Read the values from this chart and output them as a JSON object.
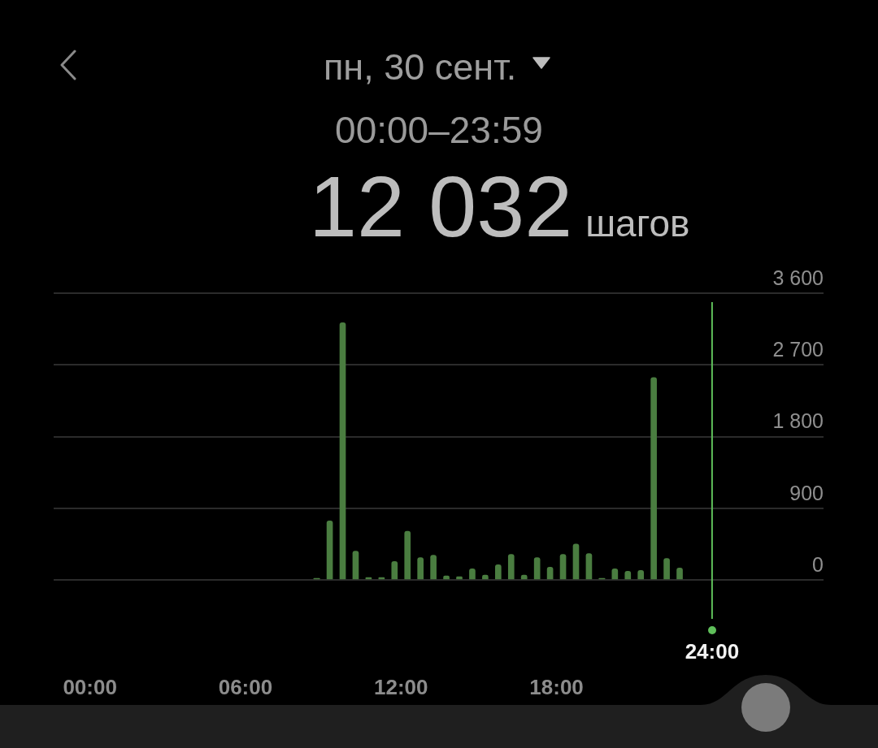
{
  "chart_data": {
    "type": "bar",
    "title": "пн, 30 сент.",
    "subtitle": "00:00–23:59",
    "annotations": [
      "12 032",
      "шагов"
    ],
    "x": [
      8.75,
      9.25,
      9.75,
      10.25,
      10.75,
      11.25,
      11.75,
      12.25,
      12.75,
      13.25,
      13.75,
      14.25,
      14.75,
      15.25,
      15.75,
      16.25,
      16.75,
      17.25,
      17.75,
      18.25,
      18.75,
      19.25,
      19.75,
      20.25,
      20.75,
      21.25,
      21.75,
      22.25,
      22.75
    ],
    "values": [
      20,
      740,
      3230,
      360,
      30,
      30,
      230,
      610,
      280,
      310,
      50,
      40,
      140,
      60,
      190,
      320,
      60,
      280,
      160,
      320,
      450,
      330,
      20,
      140,
      110,
      120,
      2540,
      270,
      150
    ],
    "color": "#4a7d40",
    "xlim": [
      -1.4,
      28.3
    ],
    "xticks": [
      {
        "value": 0,
        "label": "00:00"
      },
      {
        "value": 6,
        "label": "06:00"
      },
      {
        "value": 12,
        "label": "12:00"
      },
      {
        "value": 18,
        "label": "18:00"
      }
    ],
    "ylim": [
      0,
      3600
    ],
    "yticks": [
      0,
      900,
      {
        "value": 1800,
        "label": "1 800"
      },
      {
        "value": 2700,
        "label": "2 700"
      },
      {
        "value": 3600,
        "label": "3 600"
      }
    ],
    "grid": "y",
    "ref_lines": [
      {
        "axis": "x",
        "value": 24,
        "label": "24:00",
        "color": "#5fbf5a"
      }
    ]
  }
}
